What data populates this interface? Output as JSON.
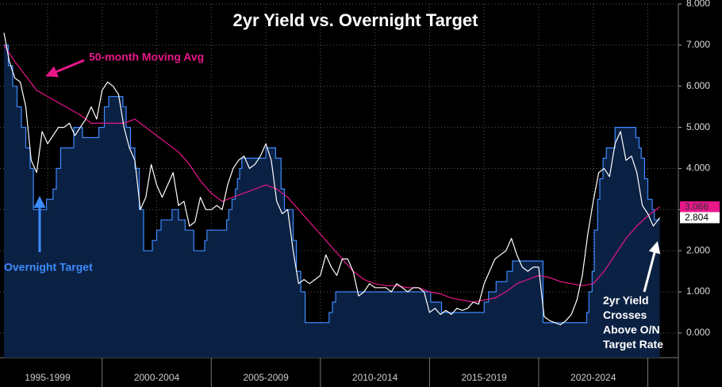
{
  "chart_data": {
    "type": "line",
    "title": "2yr Yield vs. Overnight Target",
    "xlim": [
      1995.32,
      2026.4
    ],
    "xticks": [
      {
        "value": 1997.5,
        "label": "1995-1999"
      },
      {
        "value": 2002.5,
        "label": "2000-2004"
      },
      {
        "value": 2007.5,
        "label": "2005-2009"
      },
      {
        "value": 2012.5,
        "label": "2010-2014"
      },
      {
        "value": 2017.5,
        "label": "2015-2019"
      },
      {
        "value": 2022.5,
        "label": "2020-2024"
      }
    ],
    "x_dividers": [
      2000,
      2005,
      2010,
      2015,
      2020,
      2025
    ],
    "ylim": [
      -0.6,
      8.0
    ],
    "yticks": [
      {
        "value": 0,
        "label": "0.000"
      },
      {
        "value": 1,
        "label": "1.000"
      },
      {
        "value": 2,
        "label": "2.000"
      },
      {
        "value": 3,
        "label": "3.000"
      },
      {
        "value": 4,
        "label": "4.000"
      },
      {
        "value": 5,
        "label": "5.000"
      },
      {
        "value": 6,
        "label": "6.000"
      },
      {
        "value": 7,
        "label": "7.000"
      },
      {
        "value": 8,
        "label": "8.000"
      }
    ],
    "grid": true,
    "series": [
      {
        "color": "#3d8bff",
        "fill": "#0b2143",
        "line_shape": "step",
        "x": [
          1995.5,
          1995.7,
          1995.9,
          1996.1,
          1996.3,
          1996.5,
          1996.7,
          1996.85,
          1997.45,
          1997.75,
          1997.9,
          1998.1,
          1998.7,
          1999.1,
          1999.85,
          2000.1,
          2000.3,
          2000.95,
          2001.1,
          2001.3,
          2001.5,
          2001.7,
          2001.9,
          2002.3,
          2002.5,
          2002.7,
          2003.2,
          2003.5,
          2003.8,
          2004.2,
          2004.7,
          2004.8,
          2005.7,
          2005.8,
          2005.95,
          2006.1,
          2006.2,
          2006.3,
          2006.4,
          2007.5,
          2007.95,
          2008.2,
          2008.35,
          2008.75,
          2008.9,
          2009.1,
          2009.3,
          2010.4,
          2010.55,
          2010.7,
          2015.05,
          2015.55,
          2017.5,
          2017.7,
          2018.05,
          2018.55,
          2018.8,
          2020.2,
          2022.2,
          2022.3,
          2022.45,
          2022.55,
          2022.7,
          2022.8,
          2022.95,
          2023.1,
          2023.5,
          2024.45,
          2024.6,
          2024.7,
          2024.85,
          2025.0,
          2025.2,
          2025.3,
          2025.55
        ],
        "values": [
          7.0,
          6.5,
          6.0,
          5.5,
          5.0,
          4.5,
          4.0,
          3.0,
          3.25,
          3.5,
          4.0,
          4.5,
          5.0,
          4.75,
          5.0,
          5.5,
          5.75,
          5.5,
          5.0,
          4.5,
          4.0,
          3.0,
          2.0,
          2.25,
          2.5,
          2.75,
          3.0,
          2.75,
          2.5,
          2.0,
          2.25,
          2.5,
          2.75,
          3.0,
          3.25,
          3.5,
          3.75,
          4.0,
          4.25,
          4.5,
          4.25,
          3.5,
          3.0,
          2.25,
          1.5,
          1.0,
          0.25,
          0.5,
          0.75,
          1.0,
          0.75,
          0.5,
          0.75,
          1.0,
          1.25,
          1.5,
          1.75,
          0.25,
          0.5,
          1.0,
          1.5,
          2.5,
          3.25,
          3.75,
          4.25,
          4.5,
          5.0,
          4.75,
          4.5,
          4.25,
          3.75,
          3.25,
          3.0,
          2.75,
          2.75
        ]
      },
      {
        "color": "#e8178a",
        "line_shape": "linear",
        "show_last_value": true,
        "x": [
          1995.5,
          1996,
          1997,
          1998,
          1999,
          1999.5,
          2000.5,
          2001,
          2001.5,
          2002,
          2002.5,
          2003,
          2003.5,
          2004,
          2004.5,
          2005,
          2005.5,
          2006,
          2006.5,
          2007,
          2007.5,
          2008,
          2008.5,
          2009,
          2009.5,
          2010,
          2010.5,
          2011,
          2011.5,
          2012,
          2012.5,
          2013,
          2013.5,
          2014,
          2014.5,
          2015,
          2015.5,
          2016,
          2016.5,
          2017,
          2017.5,
          2018,
          2018.5,
          2019,
          2019.5,
          2020,
          2020.5,
          2021,
          2021.5,
          2022,
          2022.5,
          2023,
          2023.5,
          2024,
          2024.5,
          2025,
          2025.55
        ],
        "values": [
          7.0,
          6.6,
          5.9,
          5.6,
          5.3,
          5.1,
          5.1,
          5.1,
          5.2,
          5.0,
          4.8,
          4.6,
          4.4,
          4.1,
          3.7,
          3.4,
          3.2,
          3.3,
          3.4,
          3.5,
          3.6,
          3.5,
          3.3,
          3.0,
          2.7,
          2.4,
          2.1,
          1.8,
          1.5,
          1.3,
          1.2,
          1.15,
          1.15,
          1.1,
          1.1,
          1.0,
          0.95,
          0.85,
          0.8,
          0.75,
          0.8,
          0.85,
          1.0,
          1.2,
          1.3,
          1.4,
          1.35,
          1.25,
          1.2,
          1.15,
          1.2,
          1.5,
          1.9,
          2.3,
          2.6,
          2.85,
          3.066
        ]
      },
      {
        "color": "#ffffff",
        "line_shape": "linear",
        "show_last_value": true,
        "x": [
          1995.5,
          1995.75,
          1996,
          1996.25,
          1996.5,
          1996.75,
          1997,
          1997.25,
          1997.5,
          1997.75,
          1998,
          1998.25,
          1998.5,
          1998.75,
          1999,
          1999.25,
          1999.5,
          1999.75,
          2000,
          2000.25,
          2000.5,
          2000.75,
          2001,
          2001.25,
          2001.5,
          2001.75,
          2002,
          2002.25,
          2002.5,
          2002.75,
          2003,
          2003.25,
          2003.5,
          2003.75,
          2004,
          2004.25,
          2004.5,
          2004.75,
          2005,
          2005.25,
          2005.5,
          2005.75,
          2006,
          2006.25,
          2006.5,
          2006.75,
          2007,
          2007.25,
          2007.5,
          2007.75,
          2008,
          2008.25,
          2008.5,
          2008.75,
          2009,
          2009.25,
          2009.5,
          2009.75,
          2010,
          2010.25,
          2010.5,
          2010.75,
          2011,
          2011.25,
          2011.5,
          2011.75,
          2012,
          2012.25,
          2012.5,
          2012.75,
          2013,
          2013.25,
          2013.5,
          2013.75,
          2014,
          2014.25,
          2014.5,
          2014.75,
          2015,
          2015.25,
          2015.5,
          2015.75,
          2016,
          2016.25,
          2016.5,
          2016.75,
          2017,
          2017.25,
          2017.5,
          2017.75,
          2018,
          2018.25,
          2018.5,
          2018.75,
          2019,
          2019.25,
          2019.5,
          2019.75,
          2020,
          2020.25,
          2020.5,
          2020.75,
          2021,
          2021.25,
          2021.5,
          2021.75,
          2022,
          2022.25,
          2022.5,
          2022.75,
          2023,
          2023.25,
          2023.5,
          2023.75,
          2024,
          2024.25,
          2024.5,
          2024.75,
          2025,
          2025.25,
          2025.55
        ],
        "values": [
          7.3,
          6.6,
          6.2,
          6.1,
          5.5,
          4.2,
          3.9,
          4.9,
          4.6,
          4.8,
          5.0,
          5.0,
          5.1,
          4.8,
          5.0,
          5.2,
          5.5,
          5.2,
          5.9,
          6.1,
          6.0,
          5.8,
          5.0,
          4.5,
          4.2,
          3.0,
          3.3,
          4.1,
          3.6,
          3.3,
          3.6,
          3.9,
          3.1,
          3.2,
          2.6,
          2.7,
          3.3,
          3.0,
          3.0,
          3.1,
          3.0,
          3.6,
          4.0,
          4.2,
          4.3,
          4.0,
          4.1,
          4.3,
          4.6,
          4.2,
          3.2,
          2.9,
          3.0,
          2.0,
          1.2,
          1.3,
          1.2,
          1.3,
          1.4,
          1.9,
          1.6,
          1.4,
          1.8,
          1.8,
          1.5,
          0.9,
          1.0,
          1.2,
          1.1,
          1.1,
          1.1,
          1.0,
          1.2,
          1.1,
          1.0,
          1.1,
          1.1,
          1.0,
          0.5,
          0.6,
          0.45,
          0.55,
          0.45,
          0.6,
          0.55,
          0.6,
          0.75,
          0.7,
          1.2,
          1.5,
          1.8,
          1.9,
          2.0,
          2.3,
          1.9,
          1.6,
          1.5,
          1.6,
          1.6,
          0.4,
          0.3,
          0.25,
          0.2,
          0.3,
          0.45,
          0.8,
          1.4,
          2.4,
          3.2,
          3.9,
          4.0,
          3.8,
          4.6,
          4.9,
          4.2,
          4.3,
          3.9,
          3.1,
          2.9,
          2.6,
          2.804
        ]
      }
    ],
    "annotations": [
      {
        "text": "50-month Moving Avg",
        "color": "#e8178a"
      },
      {
        "text": "Overnight Target",
        "color": "#3d8bff"
      },
      {
        "lines": [
          "2yr Yield",
          "Crosses",
          "Above O/N",
          "Target Rate"
        ],
        "color": "#ffffff"
      }
    ]
  }
}
